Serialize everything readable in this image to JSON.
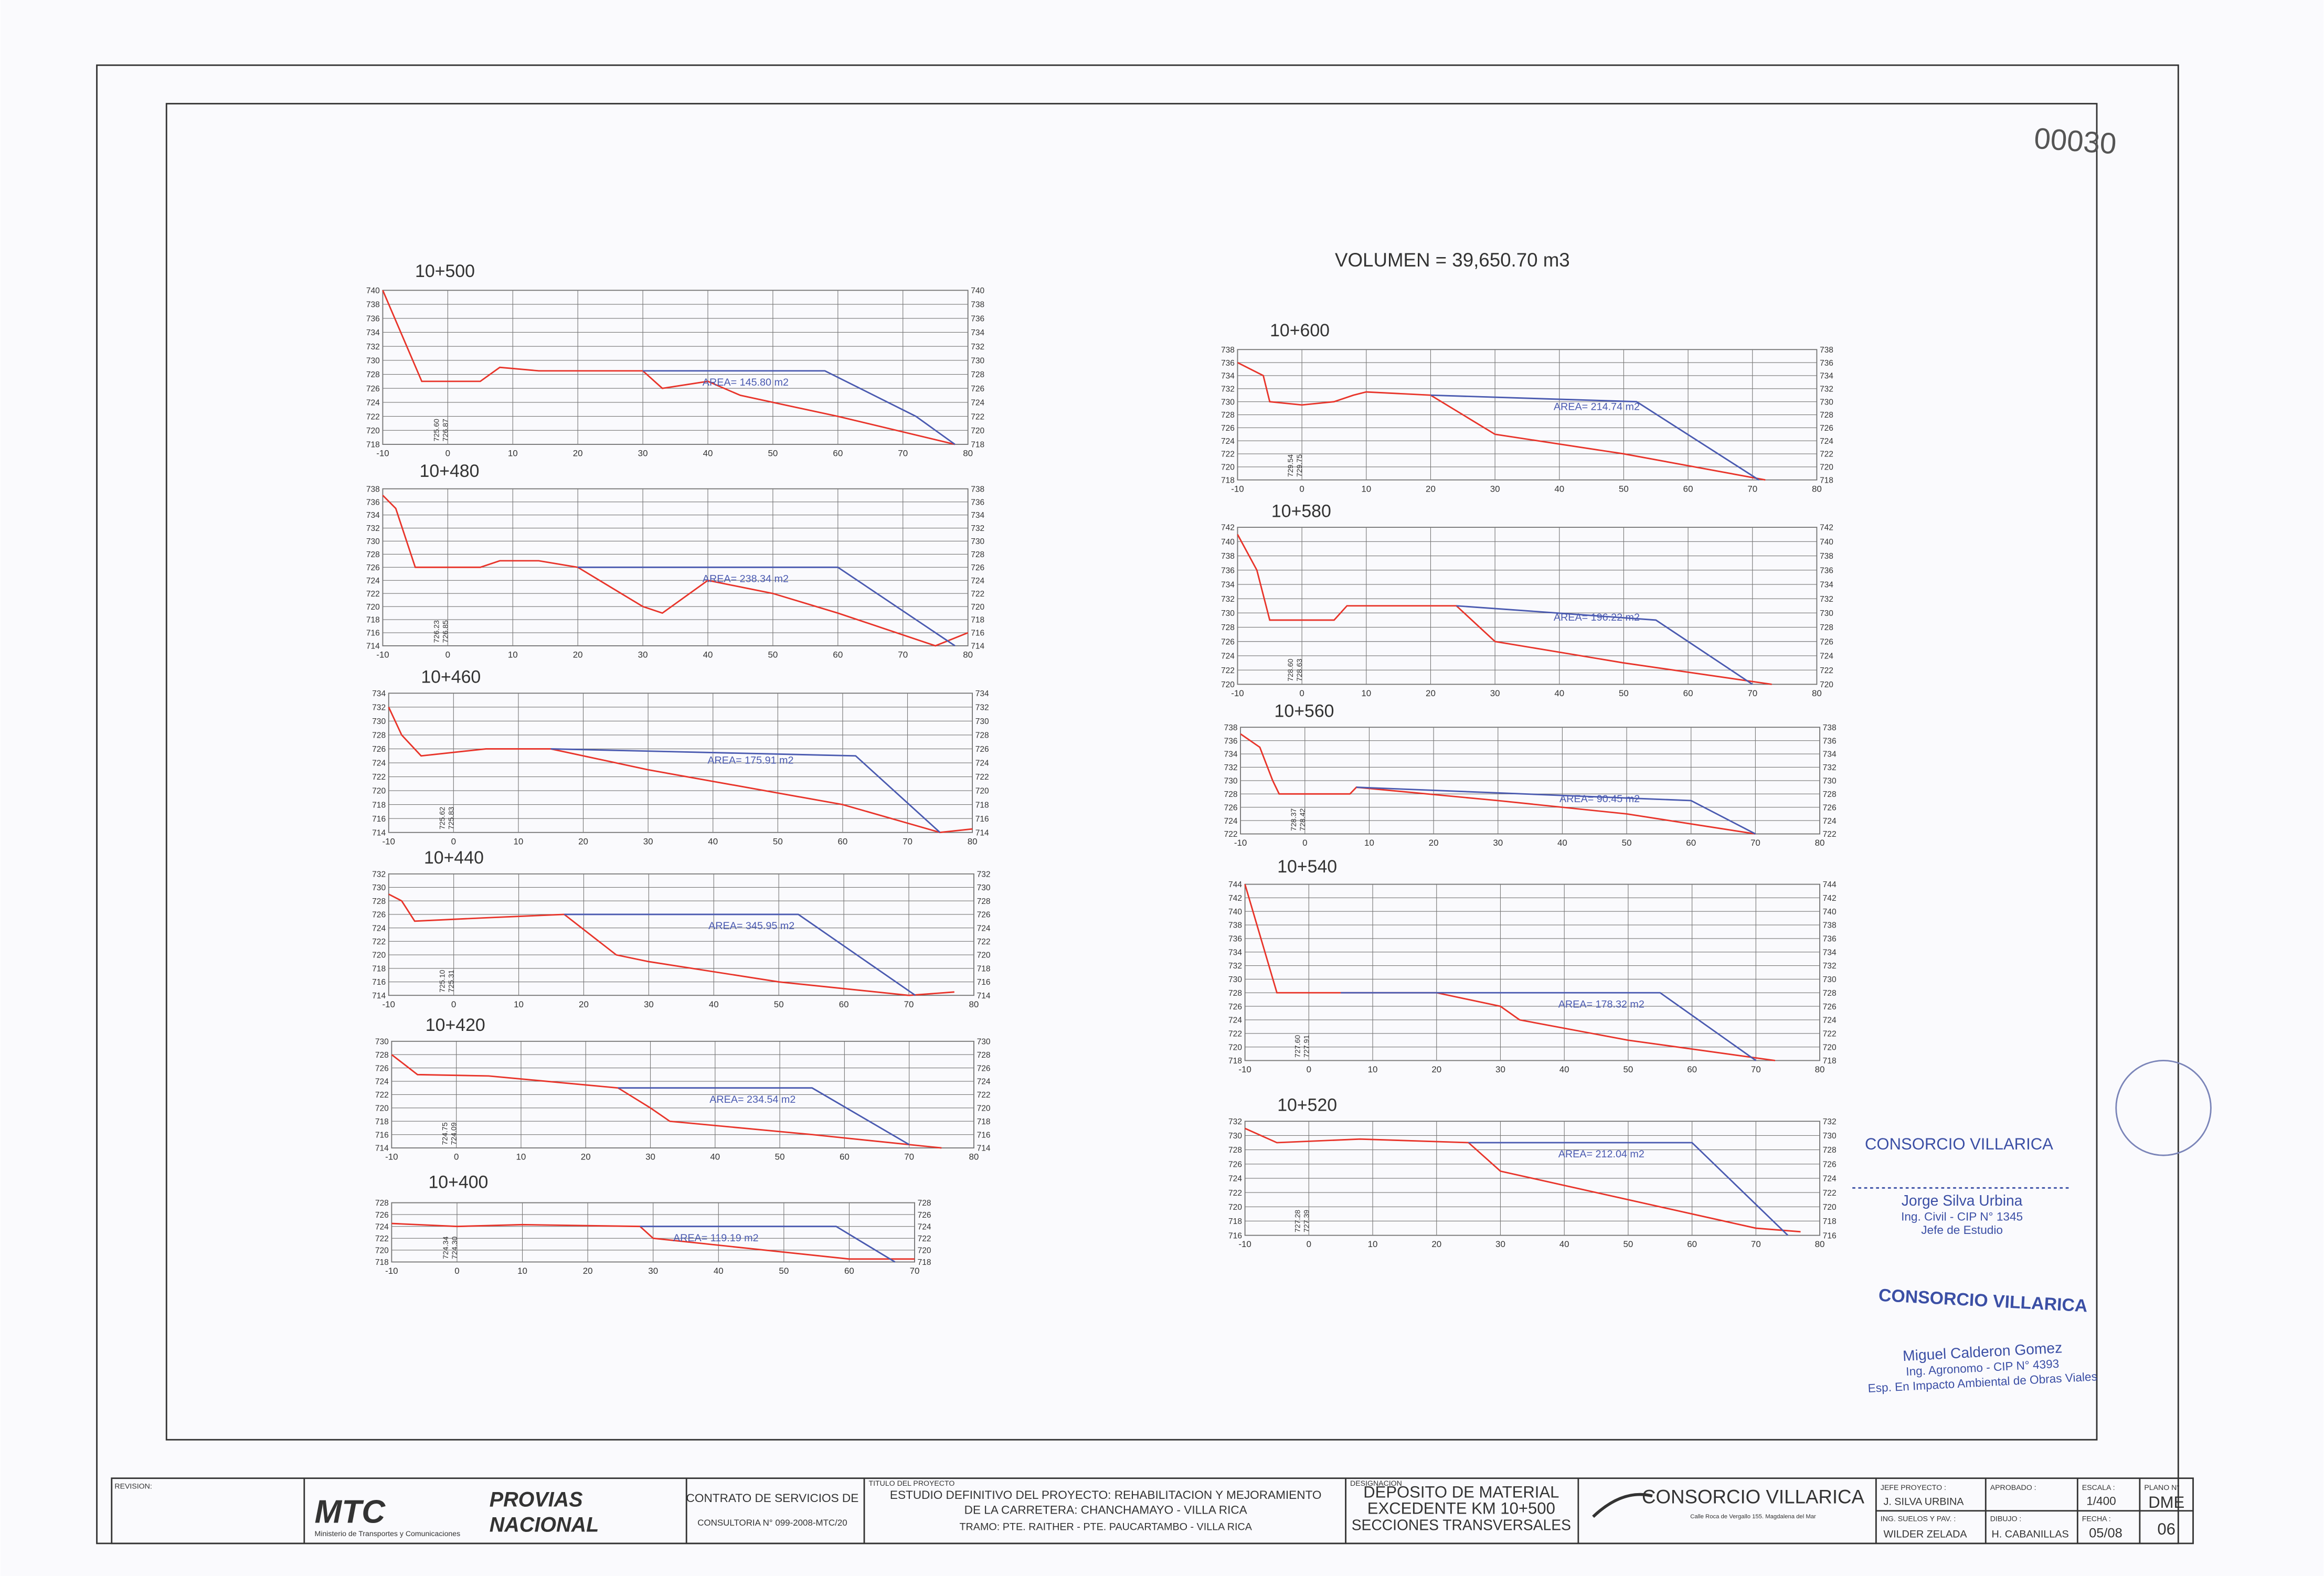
{
  "chart_data": [
    {
      "type": "line",
      "title": "10+500",
      "xlim": [
        -10,
        80
      ],
      "ylim": [
        718,
        740
      ],
      "xticks": [
        -10,
        0,
        10,
        20,
        30,
        40,
        50,
        60,
        70,
        80
      ],
      "yticks": [
        718,
        720,
        722,
        724,
        726,
        728,
        730,
        732,
        734,
        736,
        738,
        740
      ],
      "grid": true,
      "area_label": "AREA= 145.80 m2",
      "elevation_labels": [
        "725.60",
        "726.87"
      ],
      "series": [
        {
          "color": "#e8342a",
          "x": [
            -10,
            -4,
            5,
            8,
            14,
            30,
            33,
            40,
            45,
            60,
            78
          ],
          "values": [
            740,
            727,
            727,
            729,
            728.5,
            728.5,
            726,
            727,
            725,
            722,
            718
          ]
        },
        {
          "color": "#4a5ab0",
          "x": [
            30,
            58,
            72,
            78
          ],
          "values": [
            728.5,
            728.5,
            722,
            718
          ]
        }
      ]
    },
    {
      "type": "line",
      "title": "10+480",
      "xlim": [
        -10,
        80
      ],
      "ylim": [
        714,
        738
      ],
      "xticks": [
        -10,
        0,
        10,
        20,
        30,
        40,
        50,
        60,
        70,
        80
      ],
      "yticks": [
        714,
        716,
        718,
        720,
        722,
        724,
        726,
        728,
        730,
        732,
        734,
        736,
        738
      ],
      "grid": true,
      "area_label": "AREA= 238.34 m2",
      "elevation_labels": [
        "726.23",
        "726.85"
      ],
      "series": [
        {
          "color": "#e8342a",
          "x": [
            -10,
            -8,
            -5,
            5,
            8,
            14,
            20,
            25,
            30,
            33,
            40,
            50,
            60,
            75,
            80
          ],
          "values": [
            737,
            735,
            726,
            726,
            727,
            727,
            726,
            723,
            720,
            719,
            724,
            722,
            719,
            714,
            716
          ]
        },
        {
          "color": "#4a5ab0",
          "x": [
            20,
            60,
            78
          ],
          "values": [
            726,
            726,
            714
          ]
        }
      ]
    },
    {
      "type": "line",
      "title": "10+460",
      "xlim": [
        -10,
        80
      ],
      "ylim": [
        714,
        734
      ],
      "xticks": [
        -10,
        0,
        10,
        20,
        30,
        40,
        50,
        60,
        70,
        80
      ],
      "yticks": [
        714,
        716,
        718,
        720,
        722,
        724,
        726,
        728,
        730,
        732,
        734
      ],
      "grid": true,
      "area_label": "AREA= 175.91 m2",
      "elevation_labels": [
        "725.62",
        "725.83"
      ],
      "series": [
        {
          "color": "#e8342a",
          "x": [
            -10,
            -8,
            -5,
            5,
            15,
            30,
            60,
            75,
            80
          ],
          "values": [
            732,
            728,
            725,
            726,
            726,
            723,
            718,
            714,
            714.5
          ]
        },
        {
          "color": "#4a5ab0",
          "x": [
            15,
            62,
            75
          ],
          "values": [
            726,
            725,
            714
          ]
        }
      ]
    },
    {
      "type": "line",
      "title": "10+440",
      "xlim": [
        -10,
        80
      ],
      "ylim": [
        714,
        732
      ],
      "xticks": [
        -10,
        0,
        10,
        20,
        30,
        40,
        50,
        60,
        70,
        80
      ],
      "yticks": [
        714,
        716,
        718,
        720,
        722,
        724,
        726,
        728,
        730,
        732
      ],
      "grid": true,
      "area_label": "AREA= 345.95 m2",
      "elevation_labels": [
        "725.10",
        "725.31"
      ],
      "series": [
        {
          "color": "#e8342a",
          "x": [
            -10,
            -8,
            -6,
            5,
            17,
            25,
            30,
            50,
            70,
            77
          ],
          "values": [
            729,
            728,
            725,
            725.5,
            726,
            720,
            719,
            716,
            714,
            714.5
          ]
        },
        {
          "color": "#4a5ab0",
          "x": [
            17,
            53,
            71
          ],
          "values": [
            726,
            726,
            714
          ]
        }
      ]
    },
    {
      "type": "line",
      "title": "10+420",
      "xlim": [
        -10,
        80
      ],
      "ylim": [
        714,
        730
      ],
      "xticks": [
        -10,
        0,
        10,
        20,
        30,
        40,
        50,
        60,
        70,
        80
      ],
      "yticks": [
        714,
        716,
        718,
        720,
        722,
        724,
        726,
        728,
        730
      ],
      "grid": true,
      "area_label": "AREA= 234.54 m2",
      "elevation_labels": [
        "724.75",
        "724.09"
      ],
      "series": [
        {
          "color": "#e8342a",
          "x": [
            -10,
            -6,
            5,
            25,
            30,
            33,
            55,
            75
          ],
          "values": [
            728,
            725,
            724.8,
            723,
            720,
            718,
            716,
            714
          ]
        },
        {
          "color": "#4a5ab0",
          "x": [
            25,
            55,
            70
          ],
          "values": [
            723,
            723,
            714.5
          ]
        }
      ]
    },
    {
      "type": "line",
      "title": "10+400",
      "xlim": [
        -10,
        70
      ],
      "ylim": [
        718,
        728
      ],
      "xticks": [
        -10,
        0,
        10,
        20,
        30,
        40,
        50,
        60,
        70
      ],
      "yticks": [
        718,
        720,
        722,
        724,
        726,
        728
      ],
      "grid": true,
      "area_label": "AREA= 119.19 m2",
      "elevation_labels": [
        "724.34",
        "724.30"
      ],
      "series": [
        {
          "color": "#e8342a",
          "x": [
            -10,
            0,
            10,
            28,
            30,
            60,
            70
          ],
          "values": [
            724.5,
            724,
            724.3,
            724,
            722,
            718.5,
            718.5
          ]
        },
        {
          "color": "#4a5ab0",
          "x": [
            28,
            58,
            67
          ],
          "values": [
            724,
            724,
            718
          ]
        }
      ]
    },
    {
      "type": "line",
      "title": "10+600",
      "xlim": [
        -10,
        80
      ],
      "ylim": [
        718,
        738
      ],
      "xticks": [
        -10,
        0,
        10,
        20,
        30,
        40,
        50,
        60,
        70,
        80
      ],
      "yticks": [
        718,
        720,
        722,
        724,
        726,
        728,
        730,
        732,
        734,
        736,
        738
      ],
      "grid": true,
      "area_label": "AREA= 214.74 m2",
      "elevation_labels": [
        "729.54",
        "729.75"
      ],
      "series": [
        {
          "color": "#e8342a",
          "x": [
            -10,
            -6,
            -5,
            0,
            5,
            8,
            10,
            20,
            30,
            50,
            72
          ],
          "values": [
            736,
            734,
            730,
            729.5,
            730,
            731,
            731.5,
            731,
            725,
            722,
            718
          ]
        },
        {
          "color": "#4a5ab0",
          "x": [
            20,
            52,
            71
          ],
          "values": [
            731,
            730,
            718
          ]
        }
      ]
    },
    {
      "type": "line",
      "title": "10+580",
      "xlim": [
        -10,
        80
      ],
      "ylim": [
        720,
        742
      ],
      "xticks": [
        -10,
        0,
        10,
        20,
        30,
        40,
        50,
        60,
        70,
        80
      ],
      "yticks": [
        720,
        722,
        724,
        726,
        728,
        730,
        732,
        734,
        736,
        738,
        740,
        742
      ],
      "grid": true,
      "area_label": "AREA= 196.22 m2",
      "elevation_labels": [
        "728.60",
        "728.63"
      ],
      "series": [
        {
          "color": "#e8342a",
          "x": [
            -10,
            -7,
            -5,
            5,
            7,
            24,
            30,
            50,
            73
          ],
          "values": [
            741,
            736,
            729,
            729,
            731,
            731,
            726,
            723,
            720
          ]
        },
        {
          "color": "#4a5ab0",
          "x": [
            24,
            55,
            70
          ],
          "values": [
            731,
            729,
            720
          ]
        }
      ]
    },
    {
      "type": "line",
      "title": "10+560",
      "xlim": [
        -10,
        80
      ],
      "ylim": [
        722,
        738
      ],
      "xticks": [
        -10,
        0,
        10,
        20,
        30,
        40,
        50,
        60,
        70,
        80
      ],
      "yticks": [
        722,
        724,
        726,
        728,
        730,
        732,
        734,
        736,
        738
      ],
      "grid": true,
      "area_label": "AREA= 90.45 m2",
      "elevation_labels": [
        "728.37",
        "728.42"
      ],
      "series": [
        {
          "color": "#e8342a",
          "x": [
            -10,
            -7,
            -5,
            -4,
            7,
            8,
            30,
            50,
            70
          ],
          "values": [
            737,
            735,
            730,
            728,
            728,
            729,
            727,
            725,
            722
          ]
        },
        {
          "color": "#4a5ab0",
          "x": [
            8,
            60,
            70
          ],
          "values": [
            729,
            727,
            722
          ]
        }
      ]
    },
    {
      "type": "line",
      "title": "10+540",
      "xlim": [
        -10,
        80
      ],
      "ylim": [
        718,
        744
      ],
      "xticks": [
        -10,
        0,
        10,
        20,
        30,
        40,
        50,
        60,
        70,
        80
      ],
      "yticks": [
        718,
        720,
        722,
        724,
        726,
        728,
        730,
        732,
        734,
        736,
        738,
        740,
        742,
        744
      ],
      "grid": true,
      "area_label": "AREA= 178.32 m2",
      "elevation_labels": [
        "727.60",
        "727.91"
      ],
      "series": [
        {
          "color": "#e8342a",
          "x": [
            -10,
            -5,
            5,
            20,
            30,
            33,
            50,
            73
          ],
          "values": [
            744,
            728,
            728,
            728,
            726,
            724,
            721,
            718
          ]
        },
        {
          "color": "#4a5ab0",
          "x": [
            5,
            55,
            70
          ],
          "values": [
            728,
            728,
            718
          ]
        }
      ]
    },
    {
      "type": "line",
      "title": "10+520",
      "xlim": [
        -10,
        80
      ],
      "ylim": [
        716,
        732
      ],
      "xticks": [
        -10,
        0,
        10,
        20,
        30,
        40,
        50,
        60,
        70,
        80
      ],
      "yticks": [
        716,
        718,
        720,
        722,
        724,
        726,
        728,
        730,
        732
      ],
      "grid": true,
      "area_label": "AREA= 212.04 m2",
      "elevation_labels": [
        "727.28",
        "727.39"
      ],
      "series": [
        {
          "color": "#e8342a",
          "x": [
            -10,
            -5,
            8,
            25,
            30,
            70,
            77
          ],
          "values": [
            731,
            729,
            729.5,
            729,
            725,
            717,
            716.5
          ]
        },
        {
          "color": "#4a5ab0",
          "x": [
            25,
            60,
            75
          ],
          "values": [
            729,
            729,
            716
          ]
        }
      ]
    }
  ],
  "drawing": {
    "sheet_number": "00030",
    "volume": "VOLUMEN = 39,650.70 m3"
  },
  "stamps": {
    "stamp1": [
      "CONSORCIO VILLARICA",
      "Jorge Silva Urbina",
      "Ing. Civil - CIP N° 1345",
      "Jefe de Estudio"
    ],
    "stamp2": [
      "CONSORCIO VILLARICA",
      "Miguel Calderon Gomez",
      "Ing. Agronomo - CIP N° 4393",
      "Esp. En Impacto Ambiental de Obras Viales"
    ]
  },
  "title_block": {
    "revision": "REVISION:",
    "mtc": "MTC",
    "mtc_sub": "Ministerio de Transportes y Comunicaciones",
    "provias": [
      "PROVIAS",
      "NACIONAL"
    ],
    "contract": [
      "CONTRATO DE SERVICIOS DE",
      "CONSULTORIA N° 099-2008-MTC/20"
    ],
    "project_label": "TITULO DEL PROYECTO",
    "project": [
      "ESTUDIO DEFINITIVO DEL PROYECTO: REHABILITACION Y MEJORAMIENTO",
      "DE LA CARRETERA: CHANCHAMAYO - VILLA RICA",
      "TRAMO: PTE. RAITHER - PTE. PAUCARTAMBO - VILLA RICA"
    ],
    "designation_label": "DESIGNACION",
    "designation": [
      "DEPOSITO DE MATERIAL",
      "EXCEDENTE KM 10+500",
      "SECCIONES TRANSVERSALES"
    ],
    "company": "CONSORCIO VILLARICA",
    "address": "Calle Roca de Vergallo 155. Magdalena del Mar",
    "jefe_label": "JEFE PROYECTO :",
    "jefe": "J. SILVA URBINA",
    "suelos_label": "ING. SUELOS Y PAV. :",
    "suelos": "WILDER ZELADA",
    "aprobado_label": "APROBADO :",
    "dibujo_label": "DIBUJO :",
    "dibujo": "H. CABANILLAS",
    "escala_label": "ESCALA :",
    "escala": "1/400",
    "fecha_label": "FECHA :",
    "fecha": "05/08",
    "plano_label": "PLANO N°",
    "plano": "DME",
    "plano_num": "06"
  }
}
